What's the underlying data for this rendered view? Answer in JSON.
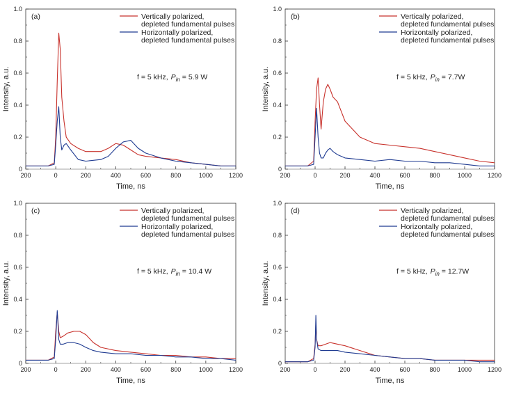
{
  "figure": {
    "colors": {
      "vertical": "#c8322c",
      "horizontal": "#1f3b91",
      "zero_line": "#bbbbbb",
      "axis": "#333333"
    }
  },
  "chart_data": [
    {
      "type": "line",
      "panel_label": "(a)",
      "xlabel": "Time, ns",
      "ylabel": "Intensity, a.u.",
      "xlim": [
        -200,
        1200
      ],
      "ylim": [
        0,
        1.0
      ],
      "xticks": [
        -200,
        0,
        200,
        400,
        600,
        800,
        1000,
        1200
      ],
      "xtick_labels": [
        "200",
        "0",
        "200",
        "400",
        "600",
        "800",
        "1000",
        "1200"
      ],
      "yticks": [
        0,
        0.2,
        0.4,
        0.6,
        0.8,
        1.0
      ],
      "ytick_labels": [
        "0",
        "0.2",
        "0.4",
        "0.6",
        "0.8",
        "1.0"
      ],
      "annotation": {
        "f_part": "f = 5 kHz,",
        "p_part": "P",
        "p_sub": "in",
        "p_value": " = 5.9 W"
      },
      "legend": [
        {
          "line1": "Vertically polarized,",
          "line2": "depleted fundamental pulses",
          "color": "#c8322c"
        },
        {
          "line1": "Horizontally polarized,",
          "line2": "depleted fundamental pulses",
          "color": "#1f3b91"
        }
      ],
      "series": [
        {
          "color": "#c8322c",
          "x": [
            -200,
            -50,
            -10,
            0,
            10,
            20,
            30,
            40,
            55,
            70,
            100,
            150,
            200,
            300,
            350,
            400,
            450,
            500,
            550,
            600,
            700,
            800,
            900,
            1000,
            1100,
            1200
          ],
          "y": [
            0.02,
            0.02,
            0.04,
            0.2,
            0.55,
            0.85,
            0.75,
            0.45,
            0.3,
            0.2,
            0.16,
            0.13,
            0.11,
            0.11,
            0.13,
            0.16,
            0.15,
            0.12,
            0.09,
            0.08,
            0.07,
            0.06,
            0.04,
            0.03,
            0.02,
            0.02
          ]
        },
        {
          "color": "#1f3b91",
          "x": [
            -200,
            -50,
            -10,
            0,
            10,
            20,
            30,
            40,
            55,
            70,
            100,
            150,
            200,
            300,
            350,
            400,
            450,
            500,
            550,
            600,
            700,
            800,
            900,
            1000,
            1100,
            1200
          ],
          "y": [
            0.02,
            0.02,
            0.03,
            0.15,
            0.3,
            0.39,
            0.2,
            0.12,
            0.15,
            0.16,
            0.12,
            0.06,
            0.05,
            0.06,
            0.08,
            0.13,
            0.17,
            0.18,
            0.13,
            0.1,
            0.07,
            0.05,
            0.04,
            0.03,
            0.02,
            0.02
          ]
        }
      ]
    },
    {
      "type": "line",
      "panel_label": "(b)",
      "xlabel": "Time, ns",
      "ylabel": "Intensity, a.u.",
      "xlim": [
        -200,
        1200
      ],
      "ylim": [
        0,
        1.0
      ],
      "xticks": [
        -200,
        0,
        200,
        400,
        600,
        800,
        1000,
        1200
      ],
      "xtick_labels": [
        "200",
        "0",
        "200",
        "400",
        "600",
        "800",
        "1000",
        "1200"
      ],
      "yticks": [
        0,
        0.2,
        0.4,
        0.6,
        0.8,
        1.0
      ],
      "ytick_labels": [
        "0",
        "0.2",
        "0.4",
        "0.6",
        "0.8",
        "1.0"
      ],
      "annotation": {
        "f_part": "f = 5 kHz,",
        "p_part": "P",
        "p_sub": "in",
        "p_value": " = 7.7W"
      },
      "legend": [
        {
          "line1": "Vertically polarized,",
          "line2": "depleted fundamental pulses",
          "color": "#c8322c"
        },
        {
          "line1": "Horizontally polarized,",
          "line2": "depleted fundamental pulses",
          "color": "#1f3b91"
        }
      ],
      "series": [
        {
          "color": "#c8322c",
          "x": [
            -200,
            -50,
            -10,
            0,
            10,
            20,
            30,
            40,
            55,
            70,
            85,
            100,
            120,
            150,
            200,
            300,
            400,
            500,
            600,
            700,
            800,
            900,
            1000,
            1100,
            1200
          ],
          "y": [
            0.02,
            0.02,
            0.05,
            0.3,
            0.5,
            0.57,
            0.4,
            0.25,
            0.42,
            0.5,
            0.53,
            0.5,
            0.45,
            0.42,
            0.3,
            0.2,
            0.16,
            0.15,
            0.14,
            0.13,
            0.11,
            0.09,
            0.07,
            0.05,
            0.04
          ]
        },
        {
          "color": "#1f3b91",
          "x": [
            -200,
            -50,
            -10,
            0,
            10,
            20,
            30,
            40,
            55,
            70,
            85,
            100,
            120,
            150,
            200,
            300,
            400,
            500,
            600,
            700,
            800,
            900,
            1000,
            1100,
            1200
          ],
          "y": [
            0.02,
            0.02,
            0.03,
            0.2,
            0.38,
            0.2,
            0.1,
            0.07,
            0.07,
            0.1,
            0.12,
            0.13,
            0.11,
            0.09,
            0.07,
            0.06,
            0.05,
            0.06,
            0.05,
            0.05,
            0.04,
            0.04,
            0.03,
            0.02,
            0.02
          ]
        }
      ]
    },
    {
      "type": "line",
      "panel_label": "(c)",
      "xlabel": "Time, ns",
      "ylabel": "Intensity, a.u.",
      "xlim": [
        -200,
        1200
      ],
      "ylim": [
        0,
        1.0
      ],
      "xticks": [
        -200,
        0,
        200,
        400,
        600,
        800,
        1000,
        1200
      ],
      "xtick_labels": [
        "200",
        "0",
        "200",
        "400",
        "600",
        "800",
        "1000",
        "1200"
      ],
      "yticks": [
        0,
        0.2,
        0.4,
        0.6,
        0.8,
        1.0
      ],
      "ytick_labels": [
        "0",
        "0.2",
        "0.4",
        "0.6",
        "0.8",
        "1.0"
      ],
      "annotation": {
        "f_part": "f = 5 kHz,",
        "p_part": "P",
        "p_sub": "in",
        "p_value": " = 10.4 W"
      },
      "legend": [
        {
          "line1": "Vertically polarized,",
          "line2": "depleted fundamental pulses",
          "color": "#c8322c"
        },
        {
          "line1": "Horizontally polarized,",
          "line2": "depleted fundamental pulses",
          "color": "#1f3b91"
        }
      ],
      "series": [
        {
          "color": "#c8322c",
          "x": [
            -200,
            -50,
            -10,
            0,
            10,
            20,
            30,
            50,
            80,
            120,
            160,
            200,
            250,
            300,
            400,
            500,
            600,
            700,
            800,
            900,
            1000,
            1100,
            1200
          ],
          "y": [
            0.02,
            0.02,
            0.04,
            0.2,
            0.32,
            0.2,
            0.16,
            0.17,
            0.19,
            0.2,
            0.2,
            0.18,
            0.13,
            0.1,
            0.08,
            0.07,
            0.06,
            0.05,
            0.05,
            0.04,
            0.04,
            0.03,
            0.03
          ]
        },
        {
          "color": "#1f3b91",
          "x": [
            -200,
            -50,
            -10,
            0,
            10,
            20,
            30,
            50,
            80,
            120,
            160,
            200,
            250,
            300,
            400,
            500,
            600,
            700,
            800,
            900,
            1000,
            1100,
            1200
          ],
          "y": [
            0.02,
            0.02,
            0.03,
            0.15,
            0.33,
            0.15,
            0.12,
            0.12,
            0.13,
            0.13,
            0.12,
            0.1,
            0.08,
            0.07,
            0.06,
            0.06,
            0.05,
            0.05,
            0.04,
            0.04,
            0.03,
            0.03,
            0.02
          ]
        }
      ]
    },
    {
      "type": "line",
      "panel_label": "(d)",
      "xlabel": "Time, ns",
      "ylabel": "Intensity, a.u.",
      "xlim": [
        -200,
        1200
      ],
      "ylim": [
        0,
        1.0
      ],
      "xticks": [
        -200,
        0,
        200,
        400,
        600,
        800,
        1000,
        1200
      ],
      "xtick_labels": [
        "200",
        "0",
        "200",
        "400",
        "600",
        "800",
        "1000",
        "1200"
      ],
      "yticks": [
        0,
        0.2,
        0.4,
        0.6,
        0.8,
        1.0
      ],
      "ytick_labels": [
        "0",
        "0.2",
        "0.4",
        "0.6",
        "0.8",
        "1.0"
      ],
      "annotation": {
        "f_part": "f = 5 kHz,",
        "p_part": "P",
        "p_sub": "in",
        "p_value": " = 12.7W"
      },
      "legend": [
        {
          "line1": "Vertically polarized,",
          "line2": "depleted fundamental pulses",
          "color": "#c8322c"
        },
        {
          "line1": "Horizontally polarized,",
          "line2": "depleted fundamental pulses",
          "color": "#1f3b91"
        }
      ],
      "series": [
        {
          "color": "#c8322c",
          "x": [
            -200,
            -50,
            -10,
            0,
            5,
            10,
            20,
            40,
            70,
            100,
            150,
            200,
            300,
            400,
            500,
            600,
            700,
            800,
            900,
            1000,
            1100,
            1200
          ],
          "y": [
            0.01,
            0.01,
            0.03,
            0.12,
            0.25,
            0.15,
            0.11,
            0.11,
            0.12,
            0.13,
            0.12,
            0.11,
            0.08,
            0.05,
            0.04,
            0.03,
            0.03,
            0.02,
            0.02,
            0.02,
            0.02,
            0.02
          ]
        },
        {
          "color": "#1f3b91",
          "x": [
            -200,
            -50,
            -10,
            0,
            5,
            10,
            20,
            40,
            70,
            100,
            150,
            200,
            300,
            400,
            500,
            600,
            700,
            800,
            900,
            1000,
            1100,
            1200
          ],
          "y": [
            0.01,
            0.01,
            0.02,
            0.1,
            0.3,
            0.15,
            0.09,
            0.08,
            0.08,
            0.08,
            0.08,
            0.07,
            0.06,
            0.05,
            0.04,
            0.03,
            0.03,
            0.02,
            0.02,
            0.02,
            0.01,
            0.01
          ]
        }
      ]
    }
  ]
}
